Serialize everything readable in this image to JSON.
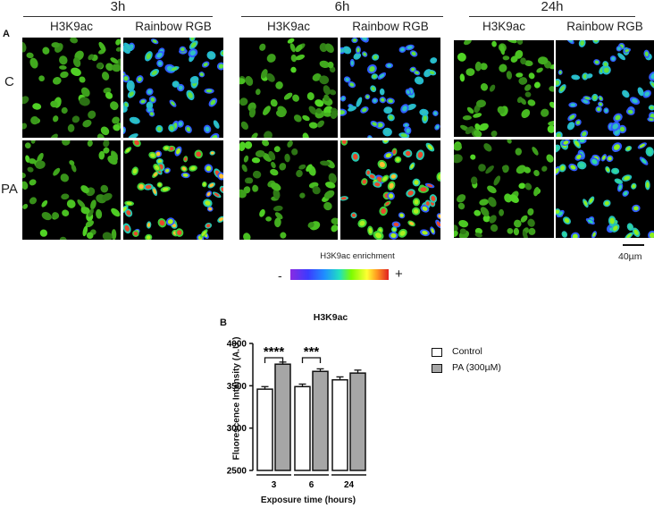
{
  "panel_a": {
    "letter": "A",
    "time_groups": [
      "3h",
      "6h",
      "24h"
    ],
    "column_labels": [
      "H3K9ac",
      "Rainbow RGB"
    ],
    "row_labels": [
      "C",
      "PA"
    ],
    "enrichment_legend": {
      "title": "H3K9ac enrichment",
      "minus": "-",
      "plus": "+"
    },
    "scale_bar": "40µm",
    "colors": {
      "nucleus_green": "#2f8a1c",
      "background": "#000000"
    }
  },
  "panel_b": {
    "letter": "B"
  },
  "chart_data": {
    "type": "bar",
    "title": "H3K9ac",
    "xlabel": "Exposure time (hours)",
    "ylabel": "Fluorescence Intensity (A.U.)",
    "categories": [
      "3",
      "6",
      "24"
    ],
    "ylim": [
      2500,
      4000
    ],
    "yticks": [
      "2500",
      "3000",
      "3500",
      "4000"
    ],
    "series": [
      {
        "name": "Control",
        "color": "#ffffff",
        "values": [
          3460,
          3490,
          3570
        ],
        "errors": [
          30,
          30,
          35
        ]
      },
      {
        "name": "PA (300µM)",
        "color": "#a6a6a6",
        "values": [
          3755,
          3670,
          3650
        ],
        "errors": [
          25,
          30,
          35
        ]
      }
    ],
    "significance": [
      {
        "category": "3",
        "label": "****"
      },
      {
        "category": "6",
        "label": "***"
      }
    ],
    "legend_position": "right"
  }
}
